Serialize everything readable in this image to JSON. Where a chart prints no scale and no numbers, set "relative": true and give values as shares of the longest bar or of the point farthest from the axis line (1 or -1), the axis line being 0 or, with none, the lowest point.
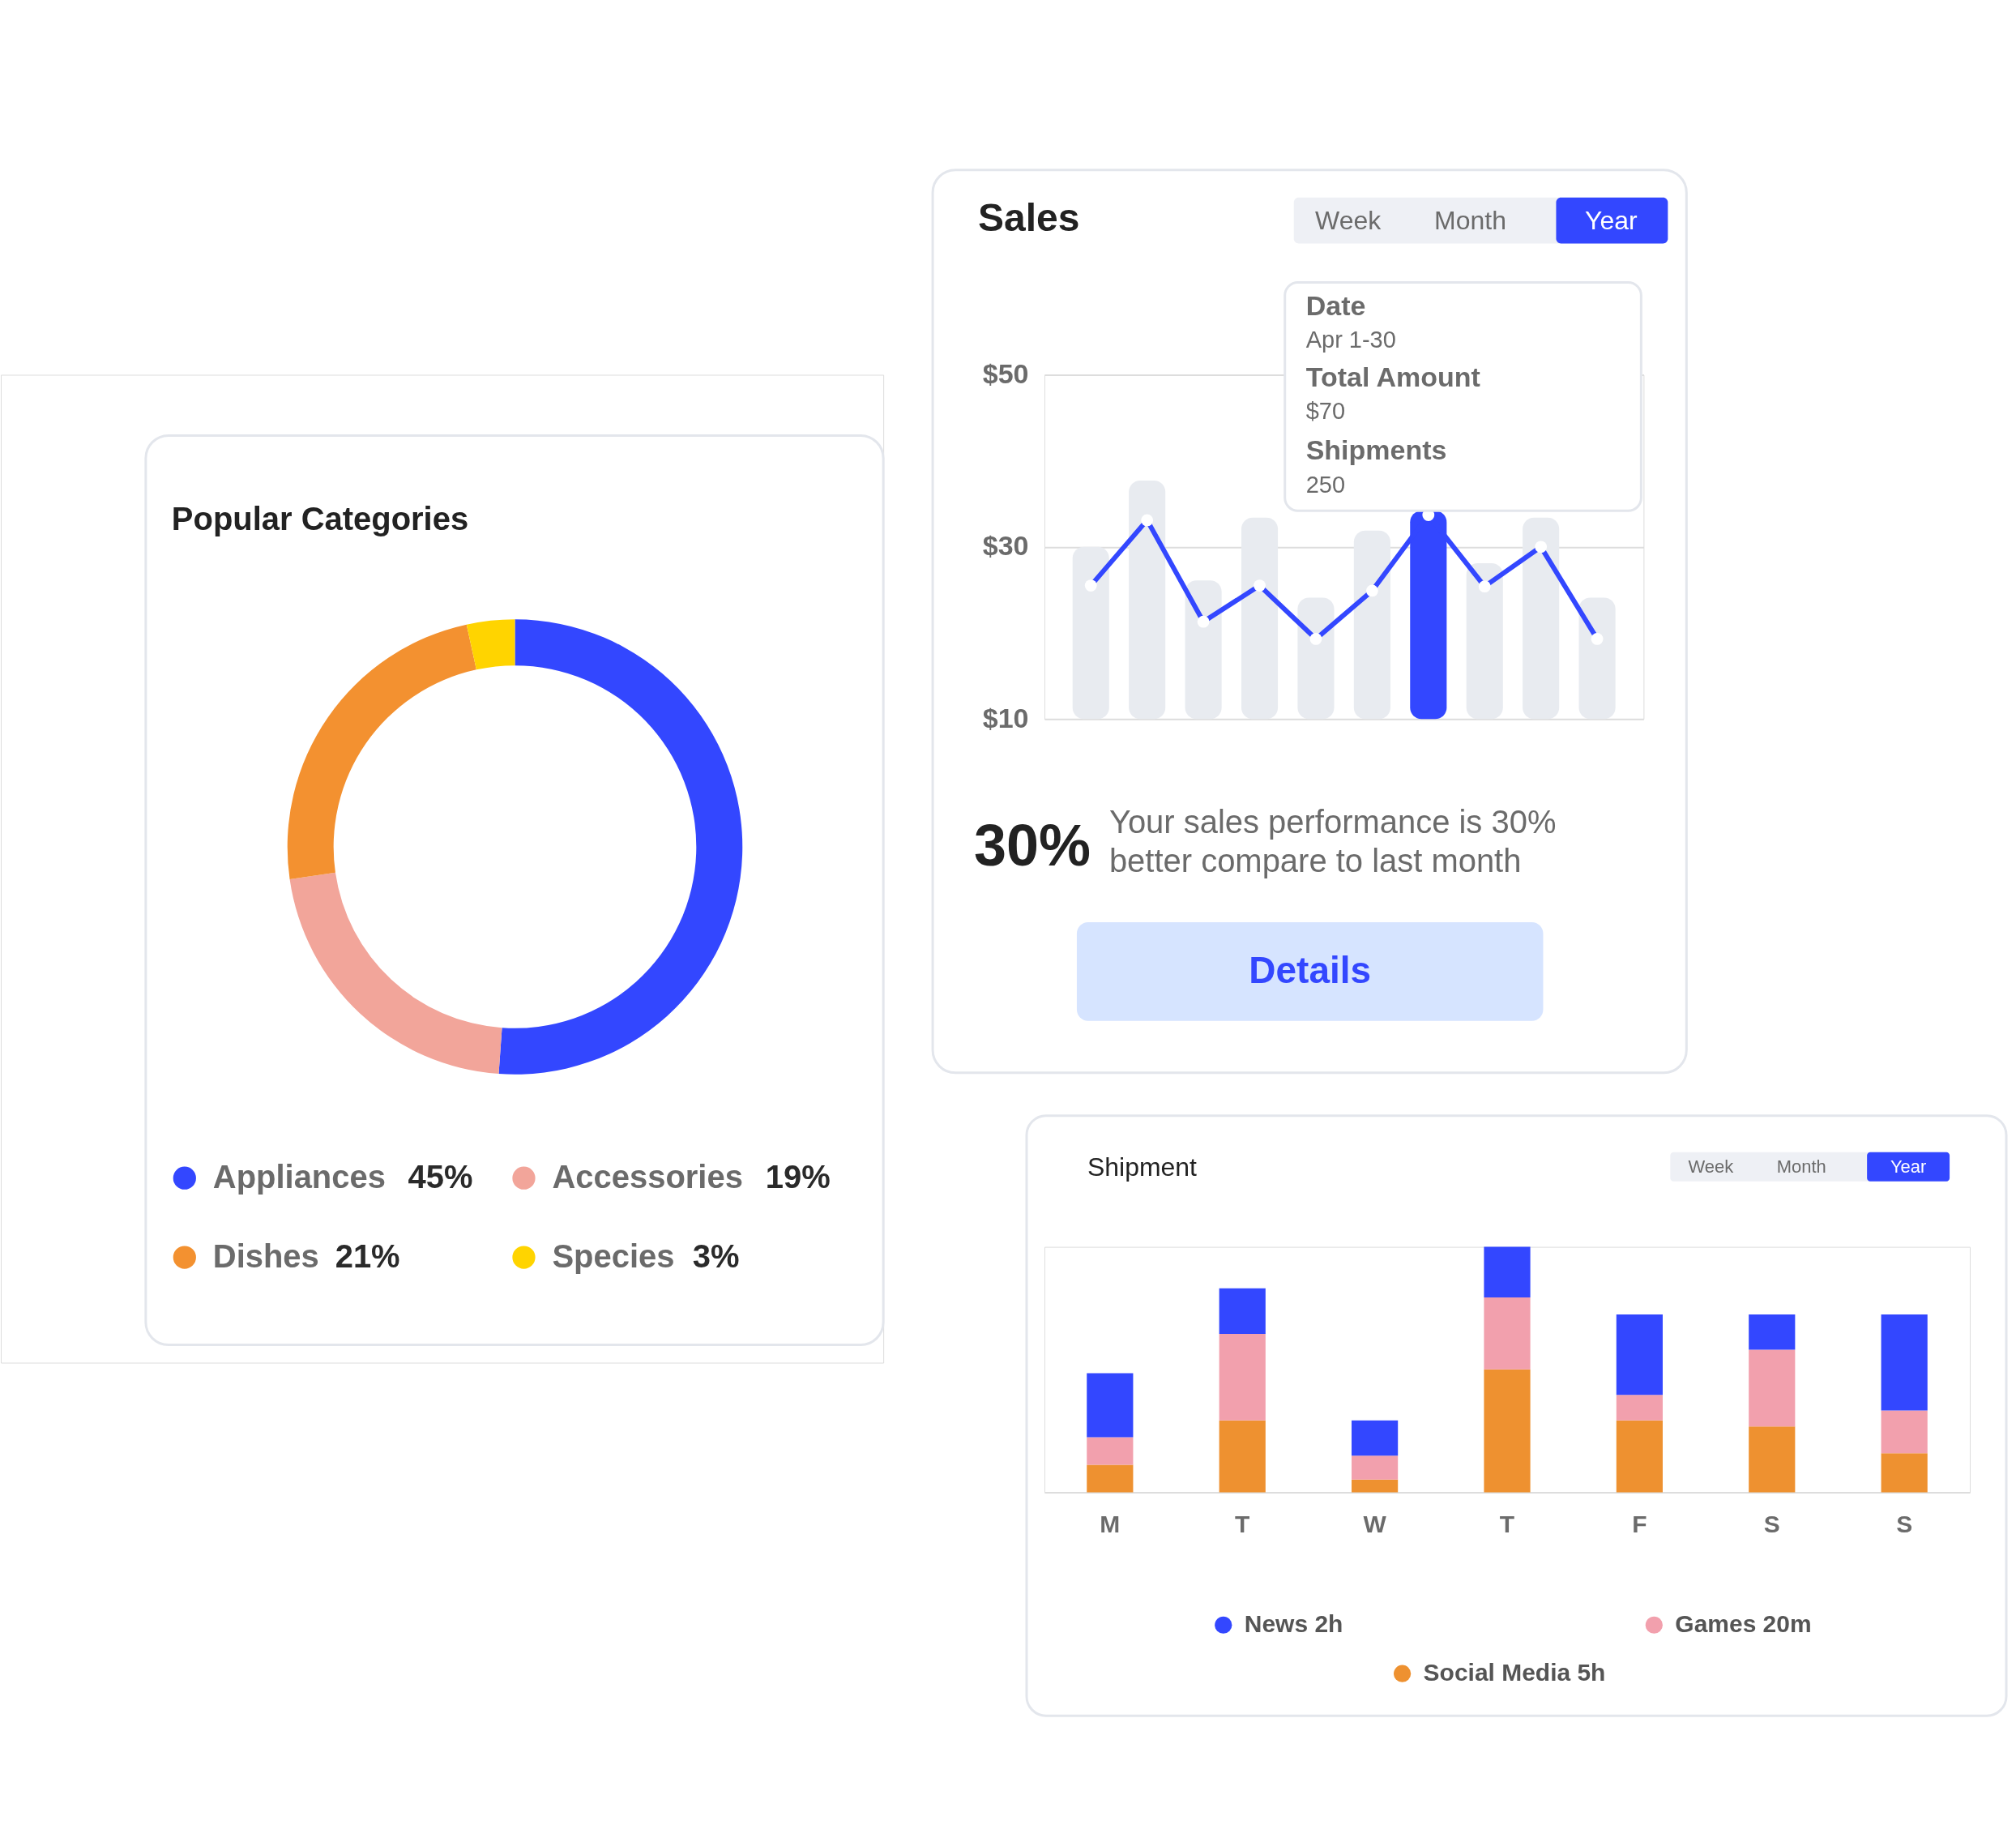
{
  "chart_data": [
    {
      "type": "donut",
      "title": "Popular Categories",
      "categories": [
        "Appliances",
        "Accessories",
        "Dishes",
        "Species"
      ],
      "values": [
        45,
        19,
        21,
        3
      ],
      "value_labels": [
        "45%",
        "19%",
        "21%",
        "3%"
      ],
      "colors": [
        "#3347ff",
        "#f2a59a",
        "#f39130",
        "#ffd400"
      ],
      "legend": "bottom"
    },
    {
      "type": "bar",
      "title": "Sales",
      "categories": [
        null,
        null,
        null,
        null,
        null,
        null,
        null,
        null,
        null,
        null
      ],
      "series": [
        {
          "type": "bar",
          "colors": [
            "#e8ebf0",
            "#e8ebf0",
            "#e8ebf0",
            "#e8ebf0",
            "#e8ebf0",
            "#e8ebf0",
            "#3347ff",
            "#e8ebf0",
            "#e8ebf0",
            "#e8ebf0"
          ],
          "values": [
            30,
            37.7,
            26.1,
            33.4,
            24.1,
            31.9,
            34.2,
            28.1,
            33.4,
            24.1
          ]
        },
        {
          "type": "line",
          "color": "#3347ff",
          "values": [
            25.5,
            33.1,
            21.3,
            25.5,
            19.3,
            24.9,
            33.7,
            25.4,
            30,
            19.3
          ]
        }
      ],
      "ylim": [
        10,
        50
      ],
      "yticks": [
        {
          "value": 10,
          "label": "$10"
        },
        {
          "value": 30,
          "label": "$30"
        },
        {
          "value": 50,
          "label": "$50"
        }
      ],
      "grid": "y",
      "marker": "circle",
      "annotations": [
        "Week",
        "Month",
        "Year",
        "Date",
        "Apr 1-30",
        "Total Amount",
        "$70",
        "Shipments",
        "250",
        "30%",
        "Your sales performance is 30%",
        "better compare to last month",
        "Details"
      ]
    },
    {
      "type": "bar",
      "title": "Shipment",
      "stacked": true,
      "relative": true,
      "categories": [
        "M",
        "T",
        "W",
        "T",
        "F",
        "S",
        "S"
      ],
      "series": [
        {
          "name": "Social Media 5h",
          "color": "#ee9130",
          "values": [
            0.112,
            0.293,
            0.052,
            0.501,
            0.293,
            0.268,
            0.159
          ]
        },
        {
          "name": "Games 20m",
          "color": "#f2a0ad",
          "values": [
            0.112,
            0.352,
            0.097,
            0.293,
            0.104,
            0.313,
            0.174
          ]
        },
        {
          "name": "News 2h",
          "color": "#3347ff",
          "values": [
            0.261,
            0.186,
            0.144,
            0.206,
            0.328,
            0.144,
            0.392
          ]
        }
      ],
      "legend": "bottom",
      "annotations": [
        "Week",
        "Month",
        "Year"
      ]
    }
  ]
}
